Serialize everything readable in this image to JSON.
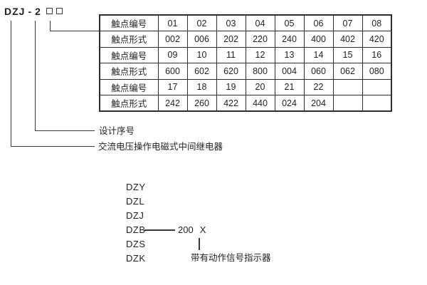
{
  "colors": {
    "background": "#ffffff",
    "text": "#1f1f1f",
    "line": "#3a3a3a",
    "table_border": "#2e2e2e"
  },
  "model_code": {
    "prefix": "DZJ",
    "separator": "-",
    "design_number": "2",
    "placeholder_box_count": 2
  },
  "callouts": {
    "design_serial": "设计序号",
    "relay_type": "交流电压操作电磁式中间继电器"
  },
  "contact_table": {
    "row_header_number_label": "触点编号",
    "row_header_form_label": "触点形式",
    "rows": [
      {
        "label": "触点编号",
        "values": [
          "01",
          "02",
          "03",
          "04",
          "05",
          "06",
          "07",
          "08"
        ]
      },
      {
        "label": "触点形式",
        "values": [
          "002",
          "006",
          "202",
          "220",
          "240",
          "400",
          "402",
          "420"
        ]
      },
      {
        "label": "触点编号",
        "values": [
          "09",
          "10",
          "11",
          "12",
          "13",
          "14",
          "15",
          "16"
        ]
      },
      {
        "label": "触点形式",
        "values": [
          "600",
          "602",
          "620",
          "800",
          "004",
          "060",
          "062",
          "080"
        ]
      },
      {
        "label": "触点编号",
        "values": [
          "17",
          "18",
          "19",
          "20",
          "21",
          "22",
          "",
          ""
        ]
      },
      {
        "label": "触点形式",
        "values": [
          "242",
          "260",
          "422",
          "440",
          "024",
          "204",
          "",
          ""
        ]
      }
    ]
  },
  "series_list": {
    "items": [
      "DZY",
      "DZL",
      "DZJ",
      "DZB",
      "DZS",
      "DZK"
    ]
  },
  "dzb_example": {
    "number": "200",
    "variant": "X",
    "note": "带有动作信号指示器"
  }
}
